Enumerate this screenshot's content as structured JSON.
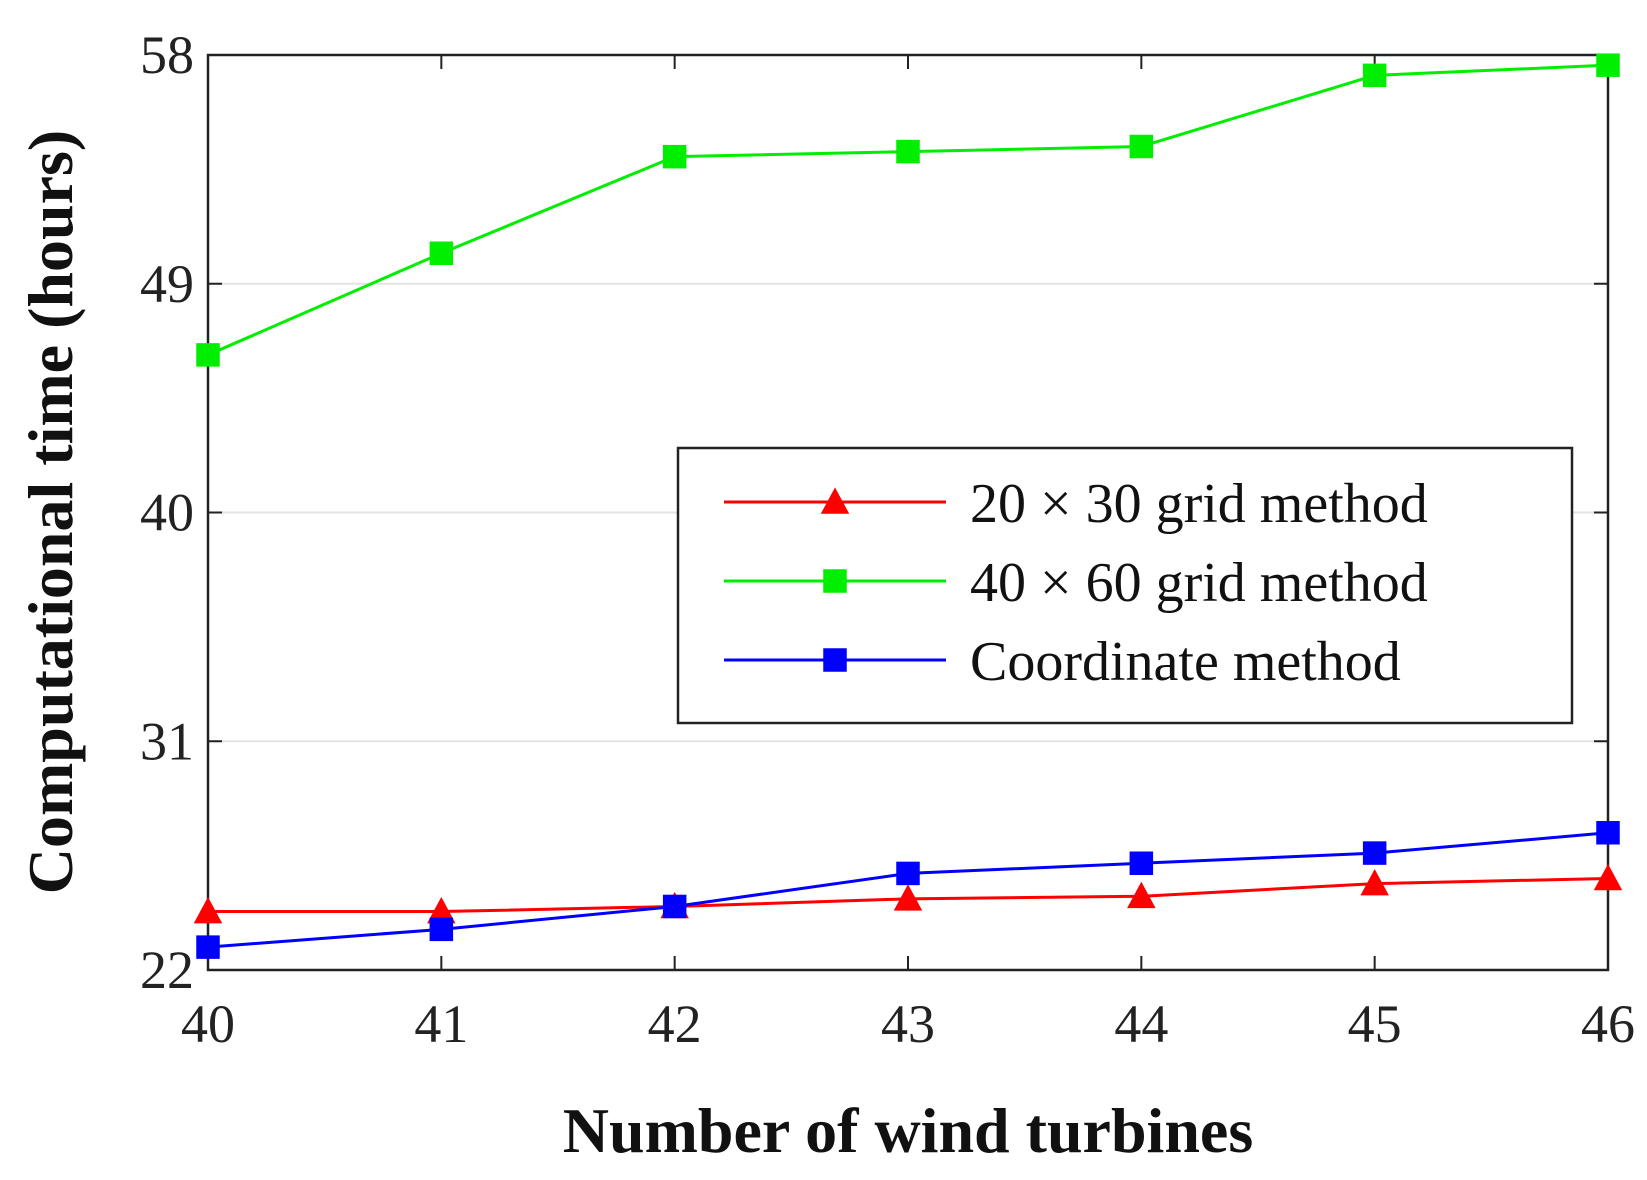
{
  "chart_data": {
    "type": "line",
    "title": "",
    "xlabel": "Number of wind turbines",
    "ylabel": "Computational time (hours)",
    "x": [
      40,
      41,
      42,
      43,
      44,
      45,
      46
    ],
    "xticks": [
      "40",
      "41",
      "42",
      "43",
      "44",
      "45",
      "46"
    ],
    "yticks": [
      "22",
      "31",
      "40",
      "49",
      "58"
    ],
    "xlim": [
      40,
      46
    ],
    "ylim": [
      22,
      58
    ],
    "grid": "horizontal",
    "legend_position": "center-right",
    "series": [
      {
        "name": "20 × 30 grid method",
        "color": "#ff0000",
        "marker": "triangle",
        "values": [
          24.3,
          24.3,
          24.5,
          24.8,
          24.9,
          25.4,
          25.6
        ]
      },
      {
        "name": "40 × 60 grid method",
        "color": "#00ee00",
        "marker": "square",
        "values": [
          46.2,
          50.2,
          54.0,
          54.2,
          54.4,
          57.2,
          57.6
        ]
      },
      {
        "name": "Coordinate method",
        "color": "#0000ff",
        "marker": "square",
        "values": [
          22.9,
          23.6,
          24.5,
          25.8,
          26.2,
          26.6,
          27.4
        ]
      }
    ]
  }
}
